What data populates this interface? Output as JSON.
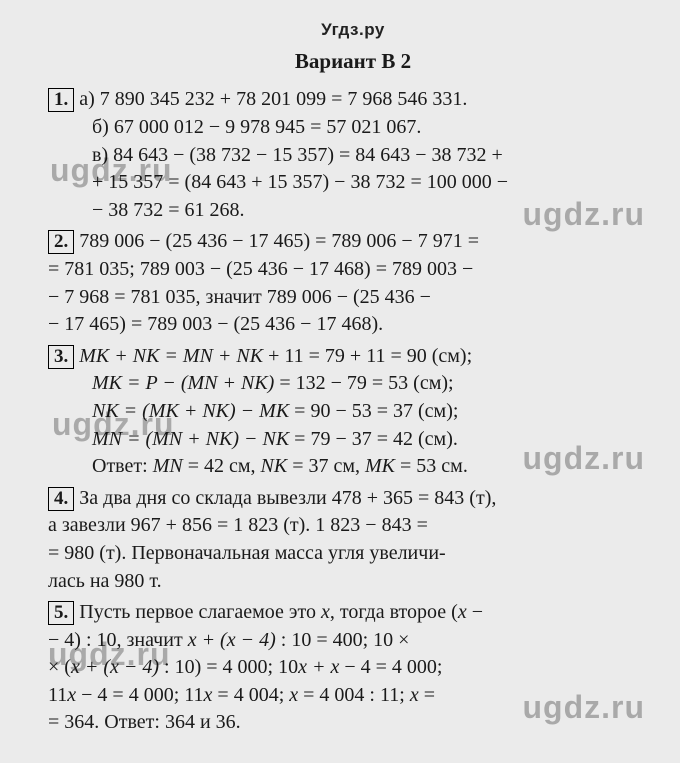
{
  "site_header": "Угдз.ру",
  "variant_title": "Вариант В 2",
  "watermark_text": "ugdz.ru",
  "problems": {
    "p1": {
      "num": "1.",
      "a": "а) 7 890 345 232 + 78 201 099 = 7 968 546 331.",
      "b": "б) 67 000 012 − 9 978 945 = 57 021 067.",
      "c1": "в) 84 643 − (38 732 − 15 357) = 84 643 − 38 732 +",
      "c2": "+ 15 357 = (84 643 + 15 357) − 38 732 = 100 000 −",
      "c3": "− 38 732 = 61 268."
    },
    "p2": {
      "num": "2.",
      "l1": "789 006 − (25 436 − 17 465) = 789 006 − 7 971 =",
      "l2": "= 781 035; 789 003 − (25 436 − 17 468) = 789 003 −",
      "l3": "− 7 968 = 781 035, значит 789 006 − (25 436 −",
      "l4": "− 17 465) = 789 003 − (25 436 − 17 468)."
    },
    "p3": {
      "num": "3.",
      "l1a": "MK + NK = MN + NK",
      "l1b": " + 11 = 79 + 11 = 90 (см);",
      "l2a": "MK = P − (MN + NK)",
      "l2b": " = 132 − 79 = 53 (см);",
      "l3a": "NK = (MK + NK) − MK",
      "l3b": " = 90 − 53 = 37 (см);",
      "l4a": "MN = (MN + NK) − NK",
      "l4b": " = 79 − 37 = 42 (см).",
      "ans_a": "Ответ: ",
      "ans_b": "MN",
      "ans_c": " = 42 см, ",
      "ans_d": "NK",
      "ans_e": " = 37 см, ",
      "ans_f": "MK",
      "ans_g": " = 53 см."
    },
    "p4": {
      "num": "4.",
      "l1": "За два дня со склада вывезли 478 + 365 = 843 (т),",
      "l2": "а завезли 967 + 856 = 1 823 (т). 1 823 − 843 =",
      "l3": "= 980 (т). Первоначальная масса угля увеличи-",
      "l4": "лась на 980 т."
    },
    "p5": {
      "num": "5.",
      "l1a": "Пусть первое слагаемое это ",
      "l1b": "x",
      "l1c": ", тогда второе (",
      "l1d": "x",
      "l1e": " −",
      "l2a": "− 4) : 10, значит ",
      "l2b": "x + (x − 4)",
      "l2c": " : 10 = 400; 10 ×",
      "l3a": "× (",
      "l3b": "x + (x − 4)",
      "l3c": " : 10) = 4 000; 10",
      "l3d": "x + x",
      "l3e": " − 4 = 4 000;",
      "l4a": "11",
      "l4b": "x",
      "l4c": " − 4 = 4 000; 11",
      "l4d": "x",
      "l4e": " = 4 004; ",
      "l4f": "x",
      "l4g": " = 4 004 : 11; ",
      "l4h": "x",
      "l4i": " =",
      "l5": "= 364. Ответ: 364 и 36."
    }
  }
}
